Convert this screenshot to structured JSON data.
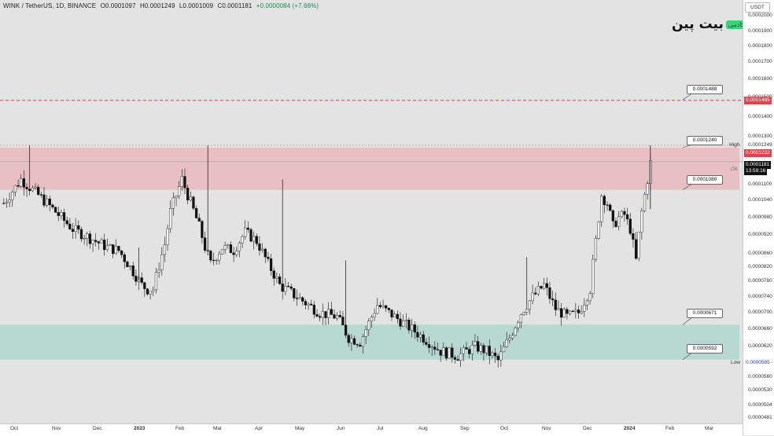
{
  "header": {
    "symbol": "WINK / TetherUS, 1D, BINANCE",
    "open": "O0.0001097",
    "high": "H0.0001249",
    "low": "L0.0001009",
    "close": "C0.0001181",
    "change": "+0.0000084 (+7.66%)"
  },
  "currency": "USDT",
  "logo": {
    "mark": "بیت پین",
    "badge": "آکادمی"
  },
  "ob_label": "OB",
  "colors": {
    "bullish": "#f5f5f5",
    "bearish": "#111111",
    "resistance_zone": "#e9b4b9",
    "support_zone": "#a9d6c9",
    "alert_line": "#e0424f",
    "last_price_tag": "#111111",
    "alert_tag": "#e0424f"
  },
  "chart_data": {
    "type": "candlestick",
    "title": "WINK / TetherUS, 1D, BINANCE",
    "y_ticks": [
      "0.0002000",
      "0.0001900",
      "0.0001800",
      "0.0001700",
      "0.0001600",
      "0.0001500",
      "0.0001400",
      "0.0001300",
      "0.0001249",
      "0.0001100",
      "0.0001040",
      "0.0000980",
      "0.0000920",
      "0.0000860",
      "0.0000820",
      "0.0000780",
      "0.0000740",
      "0.0000700",
      "0.0000660",
      "0.0000620",
      "0.0000585",
      "0.0000560",
      "0.0000530",
      "0.0000504",
      "0.0000481"
    ],
    "x_ticks": [
      "Oct",
      "Nov",
      "Dec",
      "2023",
      "Feb",
      "Mar",
      "Apr",
      "May",
      "Jun",
      "Jul",
      "Aug",
      "Sep",
      "Oct",
      "Nov",
      "Dec",
      "2024",
      "Feb",
      "Mar"
    ],
    "price_tags": {
      "alert": "0.0001485",
      "high_value": "0.0001249",
      "high_label": "High",
      "zone_top": "0.0001232",
      "last_price": "0.0001181",
      "countdown": "13:59:16",
      "low_value": "0.0000585",
      "low_label": "Low"
    },
    "callouts": [
      "0.0001488",
      "0.0001240",
      "0.0001080",
      "0.0000671",
      "0.0000592"
    ],
    "zones": [
      {
        "name": "resistance",
        "from": 0.000108,
        "to": 0.000124
      },
      {
        "name": "support",
        "from": 5.92e-05,
        "to": 6.71e-05
      }
    ],
    "alert_line": 0.0001485,
    "range_high": 0.0001249,
    "range_low": 5.85e-05,
    "last": 0.0001181,
    "path": [
      [
        0,
        0.000103
      ],
      [
        6,
        0.000112
      ],
      [
        12,
        0.000106
      ],
      [
        18,
        0.0001
      ],
      [
        24,
        9.4e-05
      ],
      [
        30,
        9.1e-05
      ],
      [
        36,
        8.8e-05
      ],
      [
        40,
        8.7e-05
      ],
      [
        44,
        8.2e-05
      ],
      [
        48,
        7.7e-05
      ],
      [
        50,
        7.6e-05
      ],
      [
        52,
        7.6e-05
      ],
      [
        56,
        8.9e-05
      ],
      [
        58,
        0.0001
      ],
      [
        62,
        0.000112
      ],
      [
        64,
        0.000106
      ],
      [
        68,
        9.5e-05
      ],
      [
        70,
        8.8e-05
      ],
      [
        72,
        8.3e-05
      ],
      [
        76,
        8.8e-05
      ],
      [
        80,
        8.7e-05
      ],
      [
        84,
        9.3e-05
      ],
      [
        88,
        9e-05
      ],
      [
        92,
        8.3e-05
      ],
      [
        96,
        7.7e-05
      ],
      [
        100,
        7.5e-05
      ],
      [
        104,
        7.3e-05
      ],
      [
        110,
        7e-05
      ],
      [
        116,
        6.9e-05
      ],
      [
        120,
        6.4e-05
      ],
      [
        124,
        6.3e-05
      ],
      [
        130,
        7.2e-05
      ],
      [
        134,
        7e-05
      ],
      [
        140,
        6.7e-05
      ],
      [
        146,
        6.4e-05
      ],
      [
        152,
        6.1e-05
      ],
      [
        158,
        6e-05
      ],
      [
        164,
        6.2e-05
      ],
      [
        168,
        6.1e-05
      ],
      [
        172,
        5.9e-05
      ],
      [
        176,
        6.4e-05
      ],
      [
        180,
        7e-05
      ],
      [
        184,
        7.4e-05
      ],
      [
        188,
        7.7e-05
      ],
      [
        192,
        7.1e-05
      ],
      [
        196,
        6.9e-05
      ],
      [
        200,
        7e-05
      ],
      [
        204,
        7.6e-05
      ],
      [
        206,
        9e-05
      ],
      [
        208,
        0.000106
      ],
      [
        210,
        0.000103
      ],
      [
        212,
        9.5e-05
      ],
      [
        214,
        9.8e-05
      ],
      [
        216,
        9.9e-05
      ],
      [
        218,
        9.4e-05
      ],
      [
        220,
        8.4e-05
      ],
      [
        222,
        0.0001
      ],
      [
        224,
        0.000112
      ],
      [
        225,
        0.0001181
      ]
    ]
  }
}
